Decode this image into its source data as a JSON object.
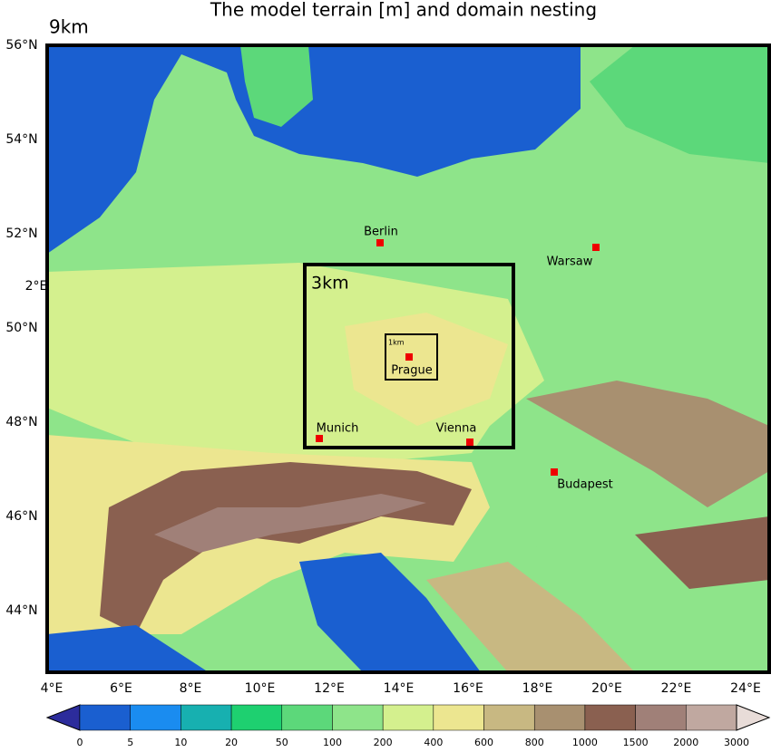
{
  "title": "The model terrain [m] and domain nesting",
  "domains": {
    "outer": "9km",
    "middle": "3km",
    "inner": "1km"
  },
  "cities": [
    "Berlin",
    "Warsaw",
    "Prague",
    "Munich",
    "Vienna",
    "Budapest"
  ],
  "latitude_labels": [
    "56°N",
    "54°N",
    "52°N",
    "50°N",
    "48°N",
    "46°N",
    "44°N"
  ],
  "stray_label": "2°E",
  "longitude_labels": [
    "4°E",
    "6°E",
    "8°E",
    "10°E",
    "12°E",
    "14°E",
    "16°E",
    "18°E",
    "20°E",
    "22°E",
    "24°E"
  ],
  "colorbar": {
    "ticks": [
      0,
      5,
      10,
      20,
      50,
      100,
      200,
      400,
      600,
      800,
      1000,
      1500,
      2000,
      3000
    ],
    "colors": [
      "#2c2c9c",
      "#1a5fd0",
      "#1a8cf0",
      "#17b0b0",
      "#1ed070",
      "#5cd87a",
      "#8ee48a",
      "#d4f08e",
      "#ece690",
      "#c8b882",
      "#a89070",
      "#8a6050",
      "#a08078",
      "#c0a8a0",
      "#e8dcd8"
    ]
  }
}
